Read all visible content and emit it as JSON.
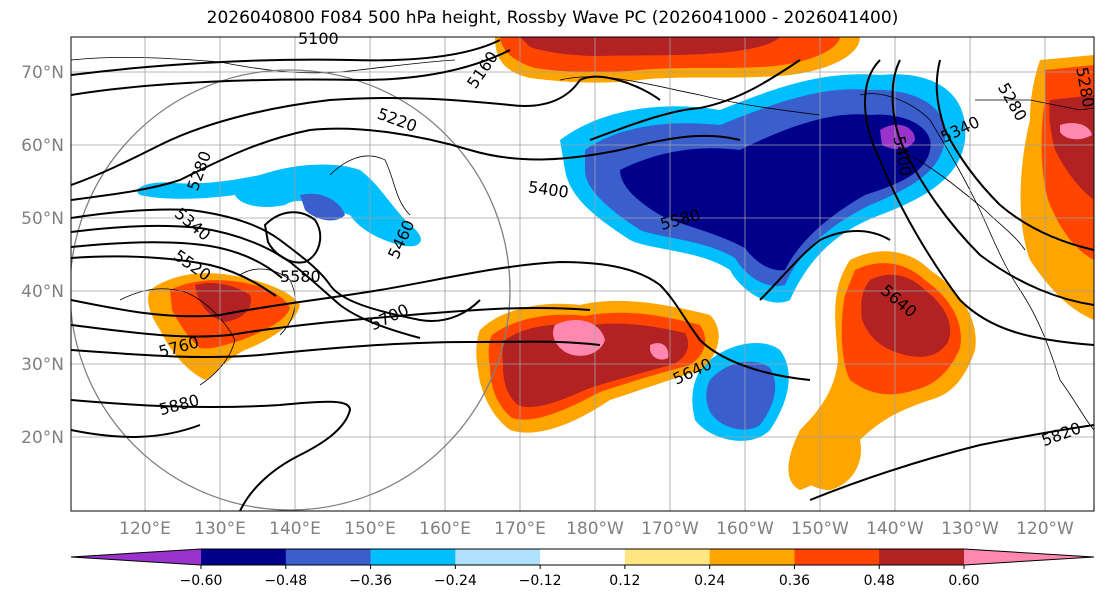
{
  "title": "2026040800 F084 500 hPa height, Rossby Wave PC (2026041000 - 2026041400)",
  "lat_labels": [
    "70°N",
    "60°N",
    "50°N",
    "40°N",
    "30°N",
    "20°N"
  ],
  "lon_labels": [
    "120°E",
    "130°E",
    "140°E",
    "150°E",
    "160°E",
    "170°E",
    "180°W",
    "170°W",
    "160°W",
    "150°W",
    "140°W",
    "130°W",
    "120°W"
  ],
  "contour_labels": [
    "5100",
    "5160",
    "5220",
    "5280",
    "5280",
    "5340",
    "5340",
    "5400",
    "5400",
    "5460",
    "5520",
    "5580",
    "5580",
    "5640",
    "5640",
    "5700",
    "5760",
    "5820",
    "5880",
    "5280"
  ],
  "colorbar": {
    "ticks": [
      "−0.60",
      "−0.48",
      "−0.36",
      "−0.24",
      "−0.12",
      "0.12",
      "0.24",
      "0.36",
      "0.48",
      "0.60"
    ],
    "colors": [
      "#9933cc",
      "#00008b",
      "#3a5fcd",
      "#00bfff",
      "#b0e2ff",
      "#ffffff",
      "#ffe680",
      "#ffa500",
      "#ff4500",
      "#b22222",
      "#ff88b0"
    ]
  },
  "colors": {
    "pc_pos_strong": "#ff88b0",
    "pc_pos_high": "#b22222",
    "pc_pos_mid": "#ff4500",
    "pc_pos_low": "#ffa500",
    "pc_neg_low": "#00bfff",
    "pc_neg_mid": "#3a5fcd",
    "pc_neg_high": "#00008b",
    "pc_neg_strong": "#9933cc"
  }
}
